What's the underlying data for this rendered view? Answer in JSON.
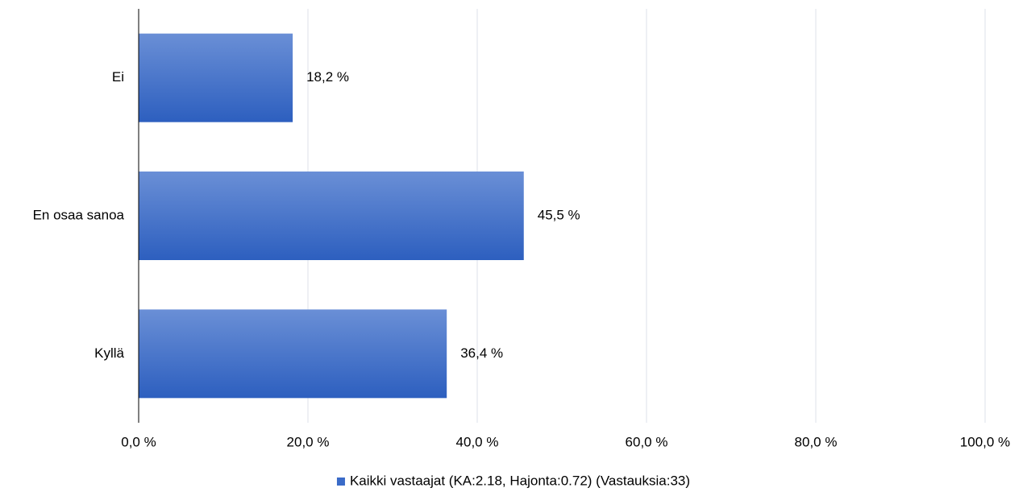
{
  "chart_data": {
    "type": "hbar",
    "categories": [
      "Ei",
      "En osaa sanoa",
      "Kyllä"
    ],
    "series": [
      {
        "name": "Kaikki vastaajat (KA:2.18, Hajonta:0.72) (Vastauksia:33)",
        "color": "#3a6bc8",
        "values": [
          18.2,
          45.5,
          36.4
        ],
        "value_labels": [
          "18,2 %",
          "45,5 %",
          "36,4 %"
        ]
      }
    ],
    "xlim": [
      0,
      100
    ],
    "xticks": [
      {
        "value": 0,
        "label": "0,0 %"
      },
      {
        "value": 20,
        "label": "20,0 %"
      },
      {
        "value": 40,
        "label": "40,0 %"
      },
      {
        "value": 60,
        "label": "60,0 %"
      },
      {
        "value": 80,
        "label": "80,0 %"
      },
      {
        "value": 100,
        "label": "100,0 %"
      }
    ],
    "grid": true,
    "legend": "bottom"
  }
}
